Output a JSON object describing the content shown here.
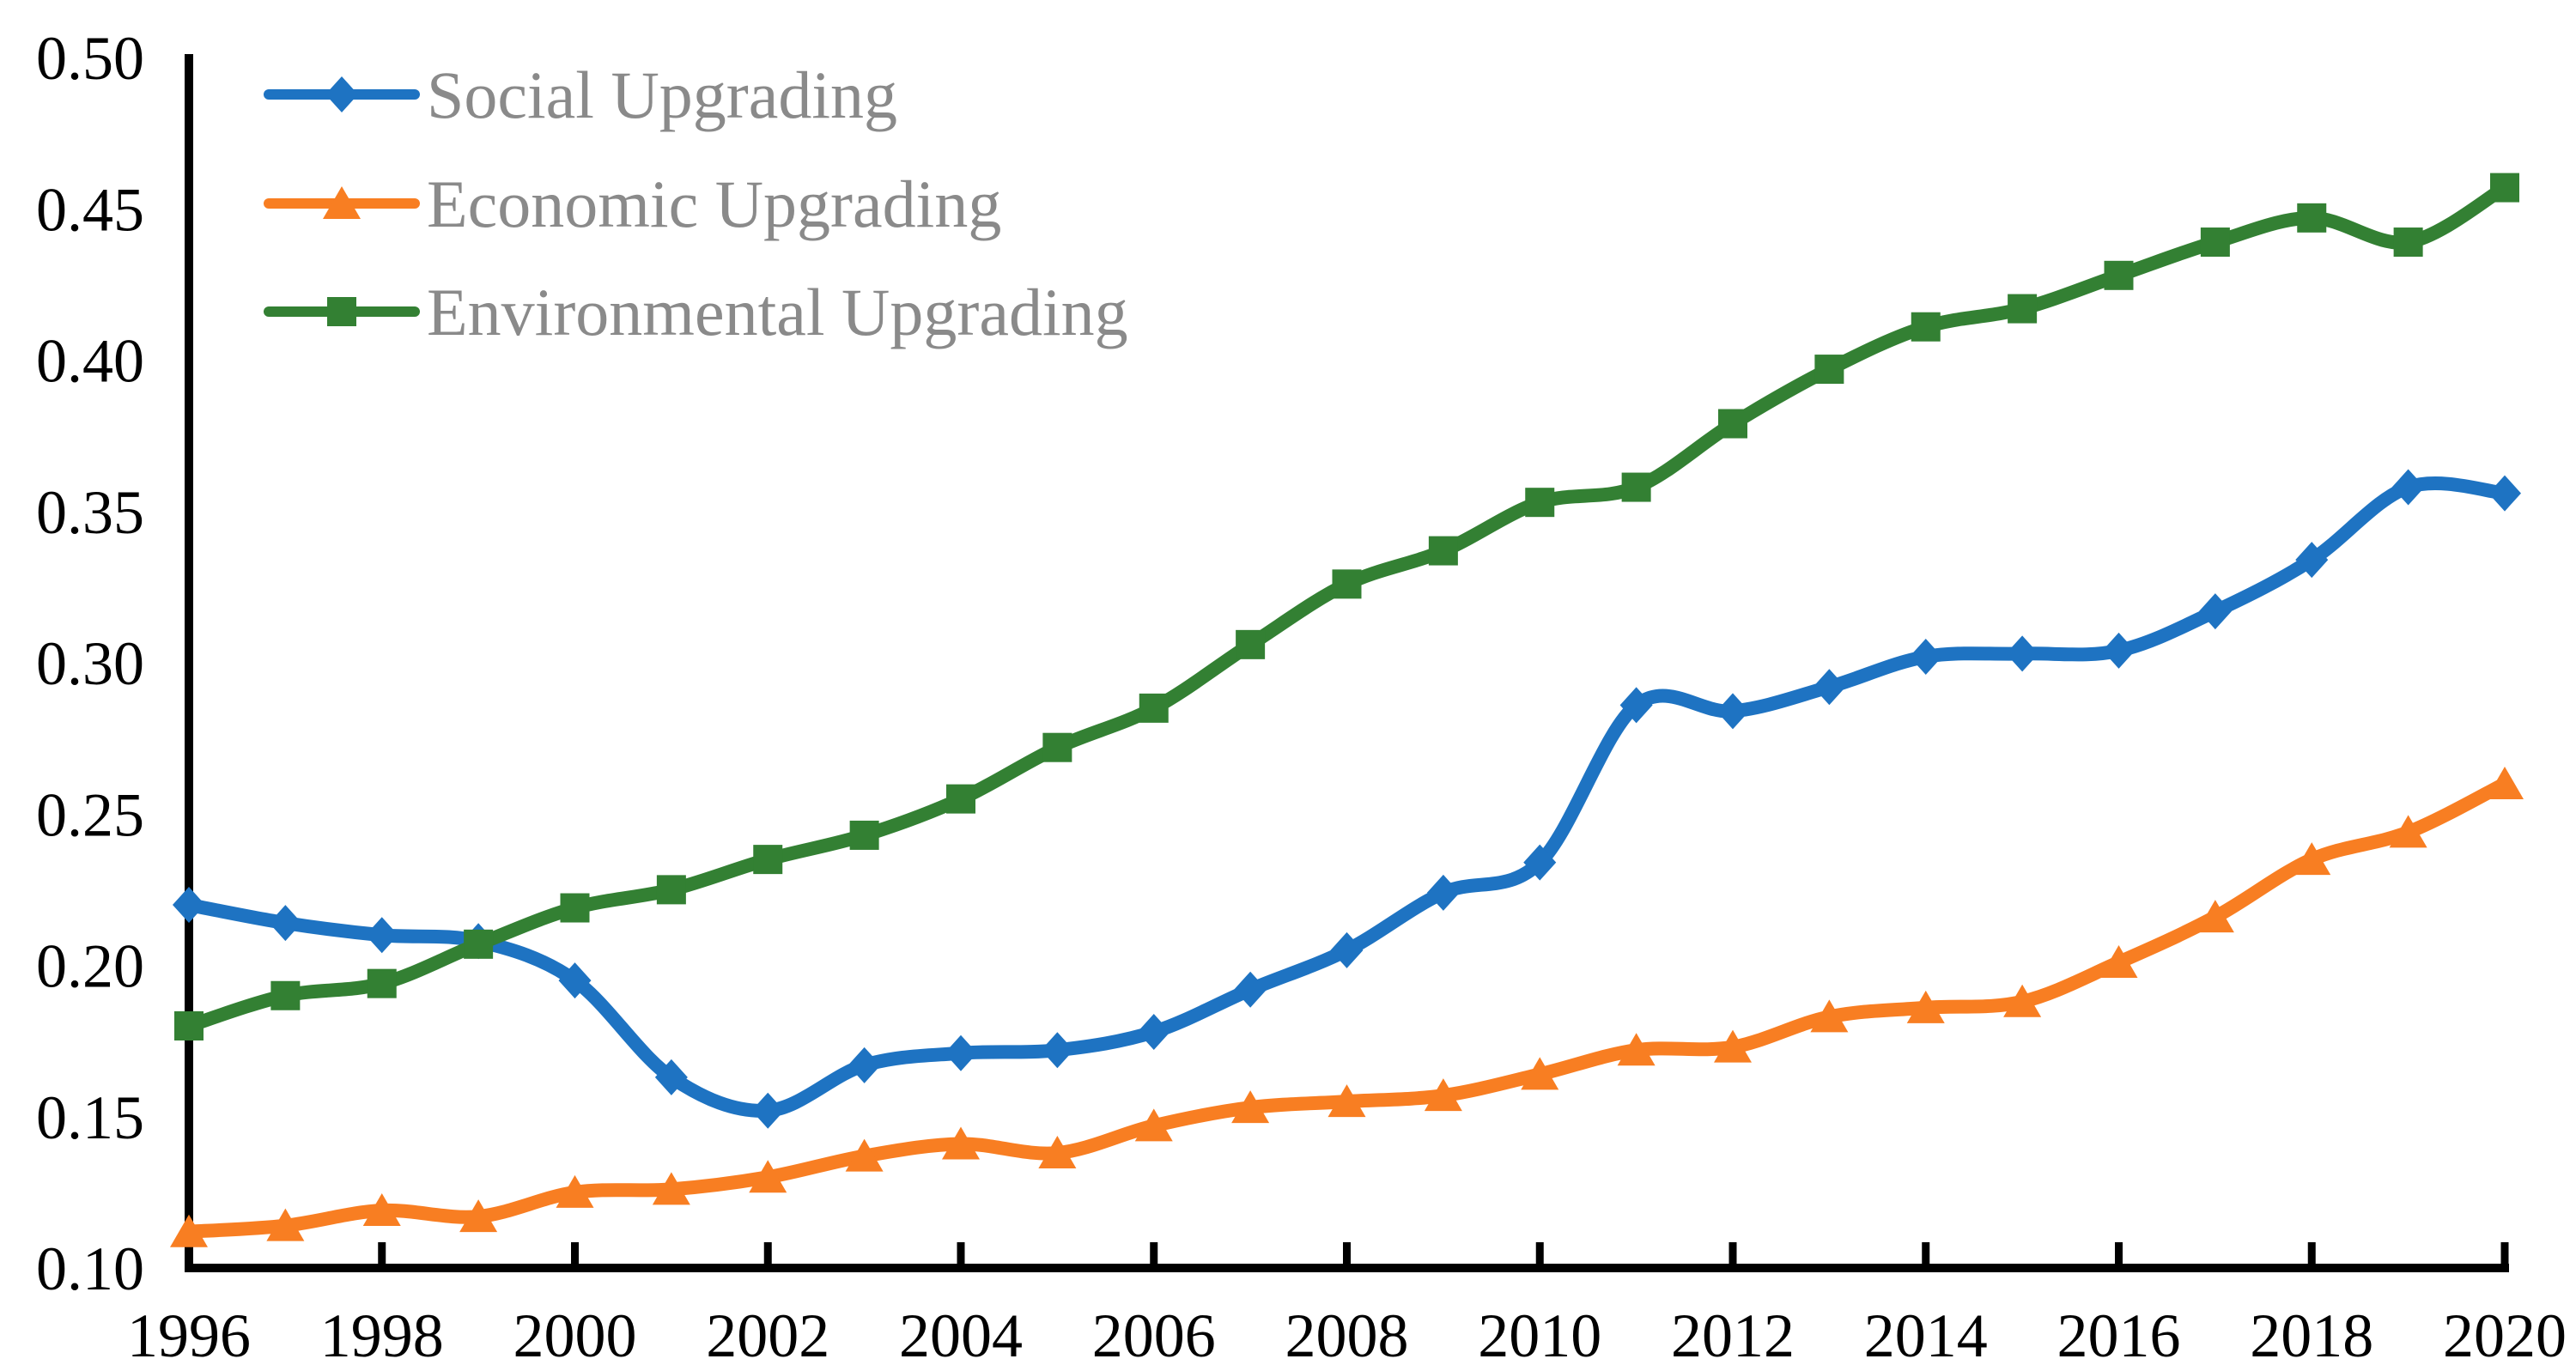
{
  "chart_data": {
    "type": "line",
    "title": "",
    "xlabel": "",
    "ylabel": "",
    "x": [
      1996,
      1997,
      1998,
      1999,
      2000,
      2001,
      2002,
      2003,
      2004,
      2005,
      2006,
      2007,
      2008,
      2009,
      2010,
      2011,
      2012,
      2013,
      2014,
      2015,
      2016,
      2017,
      2018,
      2019,
      2020
    ],
    "series": [
      {
        "name": "Social Upgrading",
        "marker": "diamond",
        "color": "#1E73C2",
        "values": [
          0.22,
          0.214,
          0.21,
          0.208,
          0.195,
          0.163,
          0.152,
          0.167,
          0.171,
          0.172,
          0.178,
          0.192,
          0.205,
          0.224,
          0.234,
          0.286,
          0.284,
          0.292,
          0.302,
          0.303,
          0.304,
          0.317,
          0.334,
          0.358,
          0.356
        ]
      },
      {
        "name": "Economic Upgrading",
        "marker": "triangle",
        "color": "#F87E22",
        "values": [
          0.112,
          0.114,
          0.119,
          0.117,
          0.125,
          0.126,
          0.13,
          0.137,
          0.141,
          0.138,
          0.147,
          0.153,
          0.155,
          0.157,
          0.164,
          0.172,
          0.173,
          0.183,
          0.186,
          0.188,
          0.201,
          0.216,
          0.235,
          0.244,
          0.26
        ]
      },
      {
        "name": "Environmental Upgrading",
        "marker": "square",
        "color": "#338033",
        "values": [
          0.18,
          0.19,
          0.194,
          0.207,
          0.219,
          0.225,
          0.235,
          0.243,
          0.255,
          0.272,
          0.285,
          0.306,
          0.326,
          0.337,
          0.353,
          0.358,
          0.379,
          0.397,
          0.411,
          0.417,
          0.428,
          0.439,
          0.447,
          0.439,
          0.457
        ]
      }
    ],
    "ylim": [
      0.1,
      0.5
    ],
    "yticks": [
      0.1,
      0.15,
      0.2,
      0.25,
      0.3,
      0.35,
      0.4,
      0.45,
      0.5
    ],
    "ytick_labels": [
      "0.10",
      "0.15",
      "0.20",
      "0.25",
      "0.30",
      "0.35",
      "0.40",
      "0.45",
      "0.50"
    ],
    "xticks": [
      1996,
      1998,
      2000,
      2002,
      2004,
      2006,
      2008,
      2010,
      2012,
      2014,
      2016,
      2018,
      2020
    ],
    "xtick_labels": [
      "1996",
      "1998",
      "2000",
      "2002",
      "2004",
      "2006",
      "2008",
      "2010",
      "2012",
      "2014",
      "2016",
      "2018",
      "2020"
    ],
    "grid": false,
    "legend_position": "top-left-inside",
    "smooth_lines": true
  },
  "colors": {
    "axis": "#000000",
    "tick_text": "#000000",
    "legend_text": "#8A8A8A",
    "background": "#FFFFFF"
  }
}
